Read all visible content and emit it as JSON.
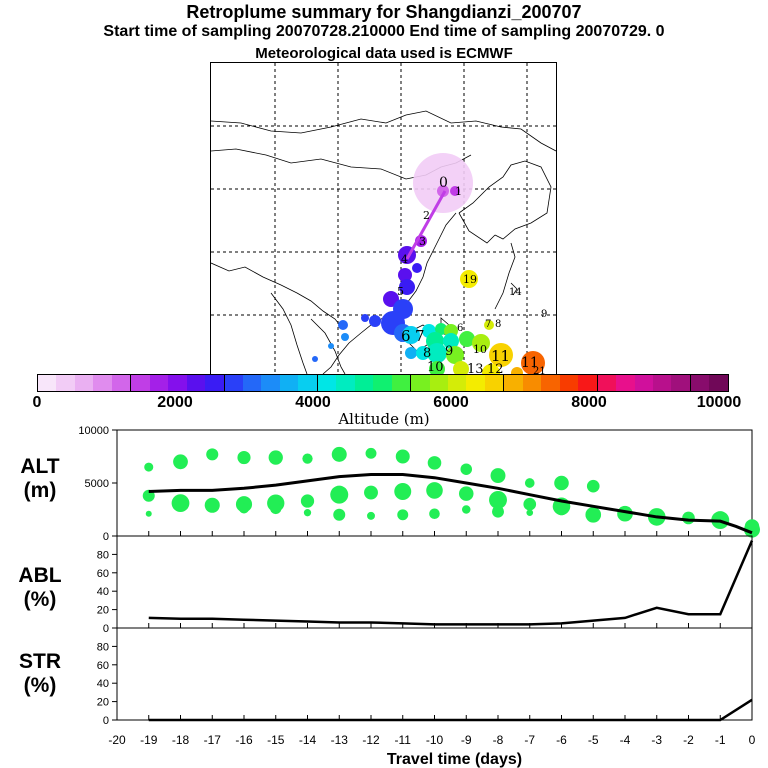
{
  "header": {
    "title": "Retroplume summary for Shangdianzi_200707",
    "sampling_line": "Start time of sampling 20070728.210000     End time of sampling 20070729.     0",
    "met_line": "Meteorological data used is ECMWF"
  },
  "colorbar": {
    "title": "Altitude (m)",
    "tick_labels": [
      "0",
      "2000",
      "4000",
      "6000",
      "8000",
      "10000"
    ],
    "colors": [
      "#f8e6fa",
      "#f2ccf6",
      "#eab0f2",
      "#e08cee",
      "#d266ea",
      "#c03ee6",
      "#a420e8",
      "#8410ec",
      "#5a10ee",
      "#3a1cf4",
      "#2a40f8",
      "#2468f8",
      "#1c8cf8",
      "#10b0f4",
      "#08cef0",
      "#00e6e6",
      "#00ecc0",
      "#00ee96",
      "#10f070",
      "#40f040",
      "#78f020",
      "#a8ee10",
      "#d4ec08",
      "#f4ec00",
      "#f8d200",
      "#f8b000",
      "#f88c00",
      "#f86400",
      "#f83c00",
      "#f81818",
      "#f0105a",
      "#e8108c",
      "#d0109c",
      "#b8108c",
      "#a0107c",
      "#880c6c",
      "#700858"
    ]
  },
  "map": {
    "trajectory_labels": [
      "0",
      "1",
      "2",
      "3",
      "4",
      "5",
      "6",
      "7",
      "8",
      "9",
      "10",
      "11",
      "12",
      "13",
      "19",
      "14",
      "11",
      "9",
      "8",
      "7",
      "6",
      "21",
      "10"
    ]
  },
  "panels": {
    "alt_label": [
      "ALT",
      "(m)"
    ],
    "abl_label": [
      "ABL",
      "(%)"
    ],
    "str_label": [
      "STR",
      "(%)"
    ],
    "xlabel": "Travel time (days)"
  },
  "chart_data": [
    {
      "type": "line",
      "title": "ALT (m)",
      "xlabel": "Travel time (days)",
      "ylabel": "ALT (m)",
      "xlim": [
        -20,
        0
      ],
      "ylim": [
        0,
        10000
      ],
      "x_ticks": [
        "-20",
        "-19",
        "-18",
        "-17",
        "-16",
        "-15",
        "-14",
        "-13",
        "-12",
        "-11",
        "-10",
        "-9",
        "-8",
        "-7",
        "-6",
        "-5",
        "-4",
        "-3",
        "-2",
        "-1",
        "0"
      ],
      "y_ticks": [
        "0",
        "5000",
        "10000"
      ],
      "series": [
        {
          "name": "mean altitude",
          "x": [
            -19,
            -18,
            -17,
            -16,
            -15,
            -14,
            -13,
            -12,
            -11,
            -10,
            -9,
            -8,
            -7,
            -6,
            -5,
            -4,
            -3,
            -2,
            -1,
            -0.5,
            0
          ],
          "values": [
            4200,
            4300,
            4300,
            4500,
            4800,
            5200,
            5600,
            5800,
            5800,
            5500,
            5000,
            4500,
            3900,
            3300,
            2800,
            2300,
            1800,
            1500,
            1400,
            900,
            300
          ]
        },
        {
          "name": "upper cluster",
          "x": [
            -19,
            -18,
            -17,
            -16,
            -15,
            -14,
            -13,
            -12,
            -11,
            -10,
            -9,
            -8,
            -7,
            -6,
            -5
          ],
          "values": [
            6500,
            7000,
            7700,
            7400,
            7400,
            7300,
            7700,
            7800,
            7500,
            6900,
            6300,
            5700,
            5000,
            5000,
            4700
          ]
        },
        {
          "name": "middle cluster",
          "x": [
            -19,
            -18,
            -17,
            -16,
            -15,
            -14,
            -13,
            -12,
            -11,
            -10,
            -9,
            -8,
            -7,
            -6,
            -5,
            -4,
            -3,
            -2,
            -1,
            0
          ],
          "values": [
            3800,
            3100,
            2900,
            3000,
            3100,
            3300,
            3900,
            4100,
            4200,
            4300,
            4000,
            3400,
            3000,
            2800,
            2000,
            2100,
            1800,
            1700,
            1500,
            900
          ]
        },
        {
          "name": "lower cluster",
          "x": [
            -19,
            -18,
            -17,
            -16,
            -15,
            -14,
            -13,
            -12,
            -11,
            -10,
            -9,
            -8,
            -7,
            -6
          ],
          "values": [
            2100,
            3200,
            2800,
            2600,
            2600,
            2200,
            2000,
            1900,
            2000,
            2100,
            2500,
            2300,
            2200,
            2500
          ]
        }
      ]
    },
    {
      "type": "line",
      "title": "ABL (%)",
      "xlabel": "Travel time (days)",
      "ylabel": "ABL (%)",
      "xlim": [
        -20,
        0
      ],
      "ylim": [
        0,
        100
      ],
      "y_ticks": [
        "0",
        "20",
        "40",
        "60",
        "80"
      ],
      "series": [
        {
          "name": "ABL",
          "x": [
            -19,
            -18,
            -17,
            -16,
            -15,
            -14,
            -13,
            -12,
            -11,
            -10,
            -9,
            -8,
            -7,
            -6,
            -5,
            -4,
            -3,
            -2,
            -1,
            0
          ],
          "values": [
            11,
            10,
            10,
            9,
            8,
            7,
            6,
            6,
            5,
            4,
            4,
            4,
            4,
            5,
            8,
            11,
            22,
            15,
            15,
            95
          ]
        }
      ]
    },
    {
      "type": "line",
      "title": "STR (%)",
      "xlabel": "Travel time (days)",
      "ylabel": "STR (%)",
      "xlim": [
        -20,
        0
      ],
      "ylim": [
        0,
        100
      ],
      "y_ticks": [
        "0",
        "20",
        "40",
        "60",
        "80"
      ],
      "series": [
        {
          "name": "STR",
          "x": [
            -19,
            -18,
            -17,
            -16,
            -15,
            -14,
            -13,
            -12,
            -11,
            -10,
            -9,
            -8,
            -7,
            -6,
            -5,
            -4,
            -3,
            -2,
            -1,
            0
          ],
          "values": [
            0,
            0,
            0,
            0,
            0,
            0,
            0,
            0,
            0,
            0,
            0,
            0,
            0,
            0,
            0,
            0,
            0,
            0,
            0,
            22
          ]
        }
      ]
    }
  ]
}
